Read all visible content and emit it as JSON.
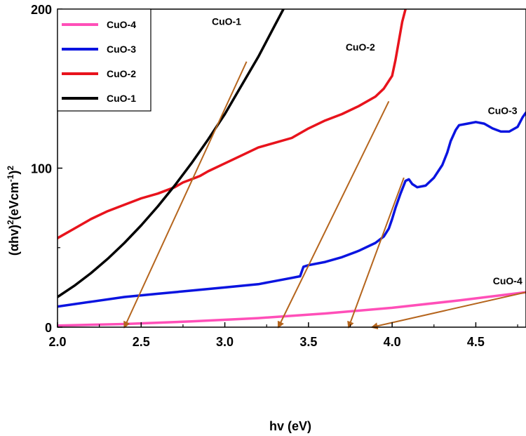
{
  "chart_data": {
    "type": "line",
    "xlabel": "hv (eV)",
    "ylabel": {
      "prefix": "(αhv)",
      "sup1": "2",
      "mid": "(eVcm",
      "sup2": "-1",
      "close": ")",
      "sup3": "2"
    },
    "xlim": [
      2.0,
      4.8
    ],
    "ylim": [
      0,
      200
    ],
    "x_ticks": [
      2.0,
      2.5,
      3.0,
      3.5,
      4.0,
      4.5
    ],
    "x_tick_labels": [
      "2.0",
      "2.5",
      "3.0",
      "3.5",
      "4.0",
      "4.5"
    ],
    "y_ticks": [
      0,
      100,
      200
    ],
    "y_tick_labels": [
      "0",
      "100",
      "200"
    ],
    "legend_location": "top-left",
    "series": [
      {
        "name": "CuO-4",
        "color": "#ff4fb8",
        "points": [
          [
            2.0,
            1
          ],
          [
            2.4,
            2
          ],
          [
            2.8,
            3.6
          ],
          [
            3.2,
            5.7
          ],
          [
            3.6,
            8.6
          ],
          [
            4.0,
            12.2
          ],
          [
            4.4,
            16.8
          ],
          [
            4.8,
            22
          ]
        ]
      },
      {
        "name": "CuO-3",
        "color": "#0a14e0",
        "points": [
          [
            2.0,
            13
          ],
          [
            2.2,
            16
          ],
          [
            2.4,
            19
          ],
          [
            2.6,
            21
          ],
          [
            2.8,
            23
          ],
          [
            3.0,
            25
          ],
          [
            3.2,
            27
          ],
          [
            3.3,
            29
          ],
          [
            3.4,
            31
          ],
          [
            3.45,
            32
          ],
          [
            3.47,
            38
          ],
          [
            3.5,
            39
          ],
          [
            3.6,
            41
          ],
          [
            3.7,
            44
          ],
          [
            3.8,
            48
          ],
          [
            3.9,
            53
          ],
          [
            3.95,
            57
          ],
          [
            3.98,
            62
          ],
          [
            4.0,
            68
          ],
          [
            4.02,
            75
          ],
          [
            4.05,
            84
          ],
          [
            4.08,
            92
          ],
          [
            4.1,
            93
          ],
          [
            4.12,
            90
          ],
          [
            4.15,
            88
          ],
          [
            4.2,
            89
          ],
          [
            4.25,
            94
          ],
          [
            4.3,
            102
          ],
          [
            4.33,
            110
          ],
          [
            4.35,
            117
          ],
          [
            4.38,
            124
          ],
          [
            4.4,
            127
          ],
          [
            4.45,
            128
          ],
          [
            4.5,
            129
          ],
          [
            4.55,
            128
          ],
          [
            4.6,
            125
          ],
          [
            4.65,
            123
          ],
          [
            4.7,
            123
          ],
          [
            4.75,
            126
          ],
          [
            4.78,
            132
          ],
          [
            4.8,
            135
          ]
        ]
      },
      {
        "name": "CuO-2",
        "color": "#e8131c",
        "points": [
          [
            2.0,
            56
          ],
          [
            2.1,
            62
          ],
          [
            2.2,
            68
          ],
          [
            2.3,
            73
          ],
          [
            2.4,
            77
          ],
          [
            2.5,
            81
          ],
          [
            2.6,
            84
          ],
          [
            2.7,
            88
          ],
          [
            2.75,
            91
          ],
          [
            2.8,
            93
          ],
          [
            2.85,
            95
          ],
          [
            2.9,
            98
          ],
          [
            3.0,
            103
          ],
          [
            3.1,
            108
          ],
          [
            3.2,
            113
          ],
          [
            3.3,
            116
          ],
          [
            3.4,
            119
          ],
          [
            3.5,
            125
          ],
          [
            3.6,
            130
          ],
          [
            3.7,
            134
          ],
          [
            3.8,
            139
          ],
          [
            3.9,
            145
          ],
          [
            3.95,
            150
          ],
          [
            4.0,
            158
          ],
          [
            4.02,
            168
          ],
          [
            4.04,
            180
          ],
          [
            4.06,
            192
          ],
          [
            4.08,
            200
          ]
        ]
      },
      {
        "name": "CuO-1",
        "color": "#000000",
        "points": [
          [
            2.0,
            19
          ],
          [
            2.1,
            26
          ],
          [
            2.2,
            34
          ],
          [
            2.3,
            43
          ],
          [
            2.4,
            53
          ],
          [
            2.5,
            64
          ],
          [
            2.6,
            76
          ],
          [
            2.7,
            89
          ],
          [
            2.8,
            103
          ],
          [
            2.9,
            118
          ],
          [
            3.0,
            134
          ],
          [
            3.1,
            152
          ],
          [
            3.2,
            170
          ],
          [
            3.3,
            190
          ],
          [
            3.35,
            200
          ]
        ]
      }
    ],
    "legend_order": [
      "CuO-4",
      "CuO-3",
      "CuO-2",
      "CuO-1"
    ],
    "tangents": [
      {
        "from": [
          3.13,
          167
        ],
        "to": [
          2.4,
          0
        ]
      },
      {
        "from": [
          3.98,
          142
        ],
        "to": [
          3.32,
          0
        ]
      },
      {
        "from": [
          4.07,
          94
        ],
        "to": [
          3.74,
          0
        ]
      },
      {
        "from": [
          4.8,
          22
        ],
        "to": [
          3.88,
          0
        ]
      }
    ],
    "tangent_color": "#b5651d",
    "annotations": [
      {
        "text": "CuO-1",
        "x": 3.01,
        "y": 190
      },
      {
        "text": "CuO-2",
        "x": 3.81,
        "y": 174
      },
      {
        "text": "CuO-3",
        "x": 4.66,
        "y": 134
      },
      {
        "text": "CuO-4",
        "x": 4.69,
        "y": 27
      }
    ]
  }
}
